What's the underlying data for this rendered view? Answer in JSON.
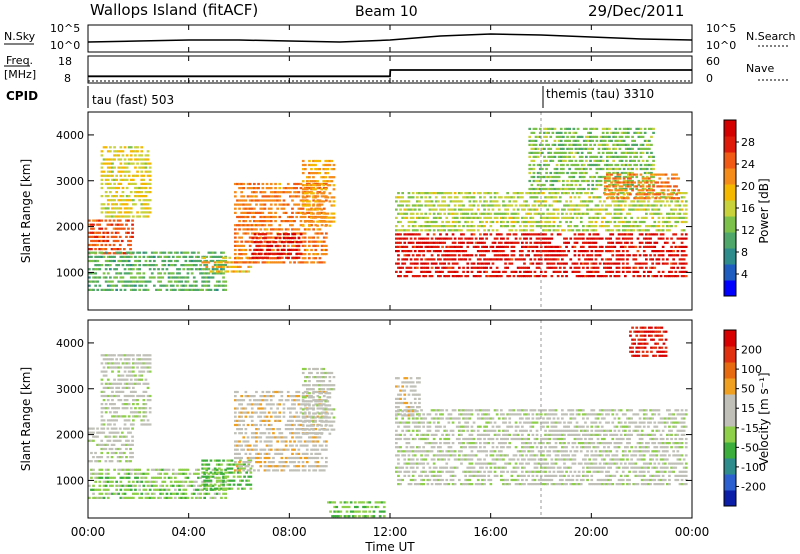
{
  "header": {
    "station": "Wallops Island (fitACF)",
    "beam": "Beam 10",
    "date": "29/Dec/2011"
  },
  "noise_panel": {
    "left_label": "N.Sky",
    "right_label": "N.Search",
    "left_ticks": [
      "10^5",
      "10^0"
    ],
    "right_ticks": [
      "10^5",
      "10^0"
    ]
  },
  "freq_panel": {
    "left_label_line1": "Freq.",
    "left_label_line2": "[MHz]",
    "right_label": "Nave",
    "left_ticks": [
      "18",
      "8"
    ],
    "right_ticks": [
      "60",
      "0"
    ]
  },
  "cpid": {
    "label": "CPID",
    "segments": [
      {
        "name": "tau (fast) 503",
        "start_hour": 0,
        "end_hour": 18
      },
      {
        "name": "themis (tau) 3310",
        "start_hour": 18,
        "end_hour": 24
      }
    ]
  },
  "power_panel": {
    "ylabel": "Slant Range [km]",
    "y_ticks": [
      "4000",
      "3000",
      "2000",
      "1000"
    ],
    "colorbar_label": "Power [dB]",
    "colorbar_ticks": [
      "28",
      "24",
      "20",
      "16",
      "12",
      "8",
      "4"
    ],
    "colors": [
      "#0000ff",
      "#1f5ec0",
      "#2e8c8c",
      "#4fa86a",
      "#7cc24a",
      "#c8d23a",
      "#f5b800",
      "#f58c1a",
      "#f05a14",
      "#e01a0a",
      "#d40000"
    ]
  },
  "velocity_panel": {
    "ylabel": "Slant Range [km]",
    "y_ticks": [
      "4000",
      "3000",
      "2000",
      "1000"
    ],
    "colorbar_label": "Velocity [m s⁻¹]",
    "colorbar_ticks": [
      "200",
      "100",
      "50",
      "15",
      "-15",
      "-50",
      "-100",
      "-200"
    ],
    "colors": [
      "#0a1ea8",
      "#2c5fd0",
      "#2e8c8c",
      "#3cae3c",
      "#8fd04a",
      "#c0c0b8",
      "#c0c0b8",
      "#f0a020",
      "#e86a10",
      "#e03010",
      "#d80000"
    ]
  },
  "x_axis": {
    "label": "Time UT",
    "ticks": [
      "00:00",
      "04:00",
      "08:00",
      "12:00",
      "16:00",
      "20:00",
      "00:00"
    ]
  },
  "chart_data": [
    {
      "type": "line",
      "title": "N.Sky",
      "x": [
        0,
        2,
        4,
        6,
        8,
        10,
        12,
        14,
        16,
        18,
        20,
        22,
        24
      ],
      "series": [
        {
          "name": "N.Sky",
          "values": [
            0.5,
            0.55,
            0.6,
            0.6,
            0.55,
            0.5,
            0.6,
            0.8,
            0.9,
            0.85,
            0.75,
            0.65,
            0.6
          ]
        }
      ]
    },
    {
      "type": "line",
      "title": "Freq.",
      "x": [
        0,
        12,
        12.01,
        24
      ],
      "ylim": [
        8,
        18
      ],
      "series": [
        {
          "name": "Freq.",
          "values": [
            10.5,
            10.5,
            12.8,
            12.8
          ]
        },
        {
          "name": "Nave",
          "values": [
            0,
            0,
            0,
            0
          ]
        }
      ]
    },
    {
      "type": "heatmap",
      "title": "Power [dB]",
      "xlabel": "Time UT",
      "ylabel": "Slant Range [km]",
      "xlim": [
        0,
        24
      ],
      "ylim": [
        180,
        4500
      ],
      "zlim": [
        0,
        30
      ],
      "regions": [
        {
          "t0": 0.0,
          "t1": 1.8,
          "r0": 1400,
          "r1": 2200,
          "z": 24
        },
        {
          "t0": 0.5,
          "t1": 2.5,
          "r0": 2200,
          "r1": 3800,
          "z": 16
        },
        {
          "t0": 0.0,
          "t1": 5.5,
          "r0": 600,
          "r1": 1500,
          "z": 10
        },
        {
          "t0": 4.5,
          "t1": 6.5,
          "r0": 1000,
          "r1": 1400,
          "z": 18
        },
        {
          "t0": 5.8,
          "t1": 9.5,
          "r0": 1200,
          "r1": 3000,
          "z": 22
        },
        {
          "t0": 6.5,
          "t1": 8.5,
          "r0": 1300,
          "r1": 1900,
          "z": 28
        },
        {
          "t0": 8.5,
          "t1": 9.8,
          "r0": 2000,
          "r1": 3500,
          "z": 20
        },
        {
          "t0": 12.2,
          "t1": 23.8,
          "r0": 900,
          "r1": 1900,
          "z": 28
        },
        {
          "t0": 12.2,
          "t1": 23.8,
          "r0": 1900,
          "r1": 2800,
          "z": 14
        },
        {
          "t0": 17.5,
          "t1": 22.5,
          "r0": 2800,
          "r1": 4200,
          "z": 12
        },
        {
          "t0": 20.5,
          "t1": 23.5,
          "r0": 2600,
          "r1": 3200,
          "z": 22
        }
      ]
    },
    {
      "type": "heatmap",
      "title": "Velocity [m s⁻¹]",
      "xlabel": "Time UT",
      "ylabel": "Slant Range [km]",
      "xlim": [
        0,
        24
      ],
      "ylim": [
        180,
        4500
      ],
      "zlim": [
        -200,
        200
      ],
      "regions": [
        {
          "t0": 0.0,
          "t1": 1.8,
          "r0": 1400,
          "r1": 2200,
          "z": 0
        },
        {
          "t0": 0.5,
          "t1": 2.5,
          "r0": 2200,
          "r1": 3800,
          "z": 0
        },
        {
          "t0": 0.0,
          "t1": 5.5,
          "r0": 600,
          "r1": 1300,
          "z": -40
        },
        {
          "t0": 4.5,
          "t1": 6.5,
          "r0": 800,
          "r1": 1500,
          "z": -60
        },
        {
          "t0": 5.8,
          "t1": 9.5,
          "r0": 1200,
          "r1": 3000,
          "z": 40
        },
        {
          "t0": 8.5,
          "t1": 9.8,
          "r0": 2000,
          "r1": 3500,
          "z": 0
        },
        {
          "t0": 9.5,
          "t1": 11.8,
          "r0": 200,
          "r1": 600,
          "z": -60
        },
        {
          "t0": 12.2,
          "t1": 23.8,
          "r0": 900,
          "r1": 2600,
          "z": 0
        },
        {
          "t0": 12.2,
          "t1": 13.2,
          "r0": 2400,
          "r1": 3300,
          "z": 40
        },
        {
          "t0": 21.5,
          "t1": 23.0,
          "r0": 3700,
          "r1": 4400,
          "z": 180
        }
      ]
    }
  ]
}
